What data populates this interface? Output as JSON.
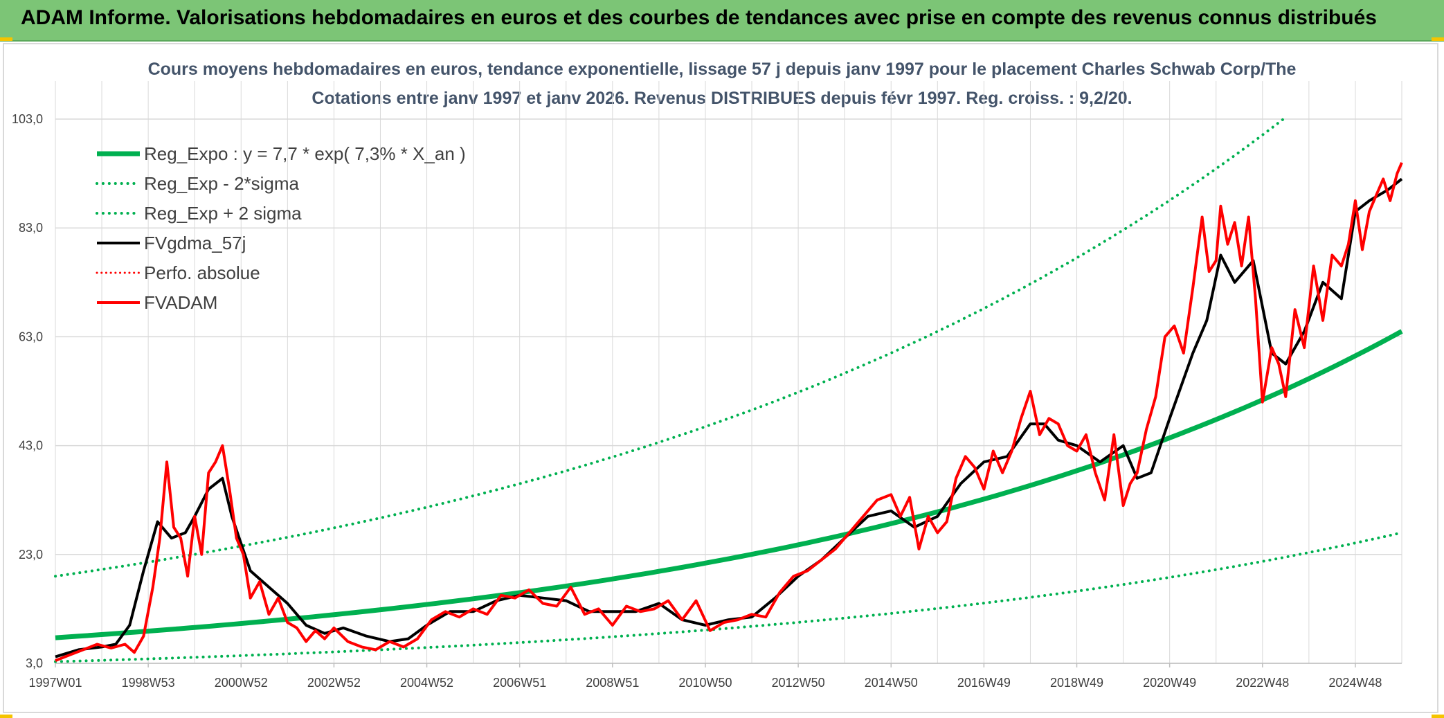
{
  "header": {
    "title": "ADAM Informe. Valorisations hebdomadaires en euros et des courbes de tendances avec prise en compte des revenus connus distribués"
  },
  "chart_data": {
    "type": "line",
    "title": "Cours moyens hebdomadaires en euros, tendance exponentielle, lissage 57 j depuis janv 1997 pour le placement Charles Schwab Corp/The",
    "subtitle": "Cotations entre janv 1997 et janv 2026. Revenus DISTRIBUES depuis févr 1997. Reg. croiss. : 9,2/20.",
    "xlabel": "",
    "ylabel": "",
    "x_range": [
      1997.0,
      2026.0
    ],
    "ylim": [
      3.0,
      103.0
    ],
    "y_ticks": [
      3.0,
      23.0,
      43.0,
      63.0,
      83.0,
      103.0
    ],
    "y_tick_labels": [
      "3,0",
      "23,0",
      "43,0",
      "63,0",
      "83,0",
      "103,0"
    ],
    "x_ticks": [
      1997.0,
      1999.0,
      2001.0,
      2003.0,
      2005.0,
      2007.0,
      2009.0,
      2011.0,
      2013.0,
      2015.0,
      2017.0,
      2019.0,
      2021.0,
      2023.0,
      2025.0
    ],
    "x_tick_labels": [
      "1997W01",
      "1998W53",
      "2000W52",
      "2002W52",
      "2004W52",
      "2006W51",
      "2008W51",
      "2010W50",
      "2012W50",
      "2014W50",
      "2016W49",
      "2018W49",
      "2020W49",
      "2022W48",
      "2024W48"
    ],
    "grid": true,
    "legend_position": "top-left",
    "series": [
      {
        "name": "Reg_Expo : y = 7,7 * exp( 7,3% *  X_an )",
        "color": "#00b050",
        "style": "solid",
        "width": 7,
        "x": [
          1997.0,
          2026.0
        ],
        "values": [
          7.7,
          64.0
        ],
        "curve": "exponential"
      },
      {
        "name": "Reg_Exp - 2*sigma",
        "color": "#00b050",
        "style": "dotted",
        "width": 4,
        "x": [
          1997.0,
          2026.0
        ],
        "values": [
          3.3,
          27.0
        ],
        "curve": "exponential"
      },
      {
        "name": "Reg_Exp + 2 sigma",
        "color": "#00b050",
        "style": "dotted",
        "width": 4,
        "x": [
          1997.0,
          2023.45
        ],
        "values": [
          19.0,
          103.0
        ],
        "curve": "exponential"
      },
      {
        "name": "FVgdma_57j",
        "color": "#000000",
        "style": "solid",
        "width": 4,
        "x": [
          1997.0,
          1997.5,
          1998.0,
          1998.3,
          1998.6,
          1998.9,
          1999.2,
          1999.5,
          1999.8,
          2000.0,
          2000.3,
          2000.6,
          2000.8,
          2001.2,
          2001.6,
          2002.0,
          2002.4,
          2002.8,
          2003.2,
          2003.7,
          2004.2,
          2004.6,
          2005.0,
          2005.5,
          2006.0,
          2006.5,
          2007.0,
          2007.5,
          2008.0,
          2008.5,
          2009.0,
          2009.5,
          2010.0,
          2010.5,
          2011.0,
          2011.5,
          2012.0,
          2012.5,
          2013.0,
          2013.5,
          2014.0,
          2014.5,
          2015.0,
          2015.5,
          2016.0,
          2016.5,
          2017.0,
          2017.5,
          2018.0,
          2018.3,
          2018.6,
          2019.0,
          2019.5,
          2020.0,
          2020.3,
          2020.6,
          2021.0,
          2021.5,
          2021.8,
          2022.1,
          2022.4,
          2022.8,
          2023.2,
          2023.5,
          2023.9,
          2024.3,
          2024.7,
          2025.0,
          2025.3,
          2025.7,
          2026.0
        ],
        "values": [
          4.2,
          5.5,
          6.0,
          6.5,
          10.0,
          20.0,
          29.0,
          26.0,
          27.0,
          30.0,
          35.0,
          37.0,
          30.0,
          20.0,
          17.0,
          14.0,
          10.0,
          8.5,
          9.5,
          8.0,
          7.0,
          7.5,
          10.0,
          12.5,
          12.5,
          14.5,
          15.5,
          15.0,
          14.5,
          12.5,
          12.5,
          12.5,
          14.0,
          11.0,
          10.0,
          11.0,
          11.5,
          15.0,
          19.0,
          22.0,
          26.0,
          30.0,
          31.0,
          28.0,
          30.0,
          36.0,
          40.0,
          41.0,
          47.0,
          47.0,
          44.0,
          43.0,
          40.0,
          43.0,
          37.0,
          38.0,
          48.0,
          60.0,
          66.0,
          78.0,
          73.0,
          77.0,
          60.0,
          58.0,
          64.0,
          73.0,
          70.0,
          86.0,
          88.0,
          90.0,
          92.0
        ]
      },
      {
        "name": "Perfo. absolue",
        "color": "#ff0000",
        "style": "dotted",
        "width": 3,
        "x": [],
        "values": []
      },
      {
        "name": "FVADAM",
        "color": "#ff0000",
        "style": "solid",
        "width": 4,
        "x": [
          1997.0,
          1997.3,
          1997.6,
          1997.9,
          1998.2,
          1998.5,
          1998.7,
          1998.9,
          1999.1,
          1999.25,
          1999.4,
          1999.55,
          1999.7,
          1999.85,
          2000.0,
          2000.15,
          2000.3,
          2000.45,
          2000.6,
          2000.75,
          2000.9,
          2001.05,
          2001.2,
          2001.4,
          2001.6,
          2001.8,
          2002.0,
          2002.2,
          2002.4,
          2002.6,
          2002.8,
          2003.0,
          2003.3,
          2003.6,
          2003.9,
          2004.2,
          2004.5,
          2004.8,
          2005.1,
          2005.4,
          2005.7,
          2006.0,
          2006.3,
          2006.6,
          2006.9,
          2007.2,
          2007.5,
          2007.8,
          2008.1,
          2008.4,
          2008.7,
          2009.0,
          2009.3,
          2009.6,
          2009.9,
          2010.2,
          2010.5,
          2010.8,
          2011.1,
          2011.4,
          2011.7,
          2012.0,
          2012.3,
          2012.6,
          2012.9,
          2013.2,
          2013.5,
          2013.8,
          2014.1,
          2014.4,
          2014.7,
          2015.0,
          2015.2,
          2015.4,
          2015.6,
          2015.8,
          2016.0,
          2016.2,
          2016.4,
          2016.6,
          2016.8,
          2017.0,
          2017.2,
          2017.4,
          2017.6,
          2017.8,
          2018.0,
          2018.2,
          2018.4,
          2018.6,
          2018.8,
          2019.0,
          2019.2,
          2019.4,
          2019.6,
          2019.8,
          2020.0,
          2020.15,
          2020.3,
          2020.5,
          2020.7,
          2020.9,
          2021.1,
          2021.3,
          2021.5,
          2021.7,
          2021.85,
          2022.0,
          2022.1,
          2022.25,
          2022.4,
          2022.55,
          2022.7,
          2022.85,
          2023.0,
          2023.2,
          2023.35,
          2023.5,
          2023.7,
          2023.9,
          2024.1,
          2024.3,
          2024.5,
          2024.7,
          2024.85,
          2025.0,
          2025.15,
          2025.3,
          2025.45,
          2025.6,
          2025.75,
          2025.9,
          2026.0
        ],
        "values": [
          3.5,
          4.5,
          5.5,
          6.5,
          5.8,
          6.5,
          5.0,
          8.0,
          17.0,
          26.0,
          40.0,
          28.0,
          26.0,
          19.0,
          30.0,
          23.0,
          38.0,
          40.0,
          43.0,
          35.0,
          26.0,
          23.0,
          15.0,
          18.0,
          12.0,
          15.0,
          10.5,
          9.5,
          7.0,
          9.0,
          7.5,
          9.5,
          7.0,
          6.0,
          5.5,
          7.0,
          6.0,
          7.5,
          11.0,
          12.5,
          11.5,
          13.0,
          12.0,
          15.5,
          15.0,
          16.5,
          14.0,
          13.5,
          17.0,
          12.0,
          13.0,
          10.0,
          13.5,
          12.5,
          13.0,
          14.5,
          11.0,
          14.5,
          9.0,
          10.5,
          11.0,
          12.0,
          11.5,
          16.0,
          19.0,
          20.0,
          22.0,
          24.0,
          27.0,
          30.0,
          33.0,
          34.0,
          30.0,
          33.5,
          24.0,
          30.0,
          27.0,
          29.0,
          37.0,
          41.0,
          39.0,
          35.0,
          42.0,
          38.0,
          42.0,
          48.0,
          53.0,
          45.0,
          48.0,
          47.0,
          43.0,
          42.0,
          45.0,
          38.0,
          33.0,
          45.0,
          32.0,
          36.0,
          38.0,
          46.0,
          52.0,
          63.0,
          65.0,
          60.0,
          72.0,
          85.0,
          75.0,
          77.0,
          87.0,
          80.0,
          84.0,
          76.0,
          85.0,
          70.0,
          51.0,
          61.0,
          58.0,
          52.0,
          68.0,
          61.0,
          76.0,
          66.0,
          78.0,
          76.0,
          80.0,
          88.0,
          79.0,
          86.0,
          89.0,
          92.0,
          88.0,
          93.0,
          95.0
        ]
      }
    ]
  }
}
